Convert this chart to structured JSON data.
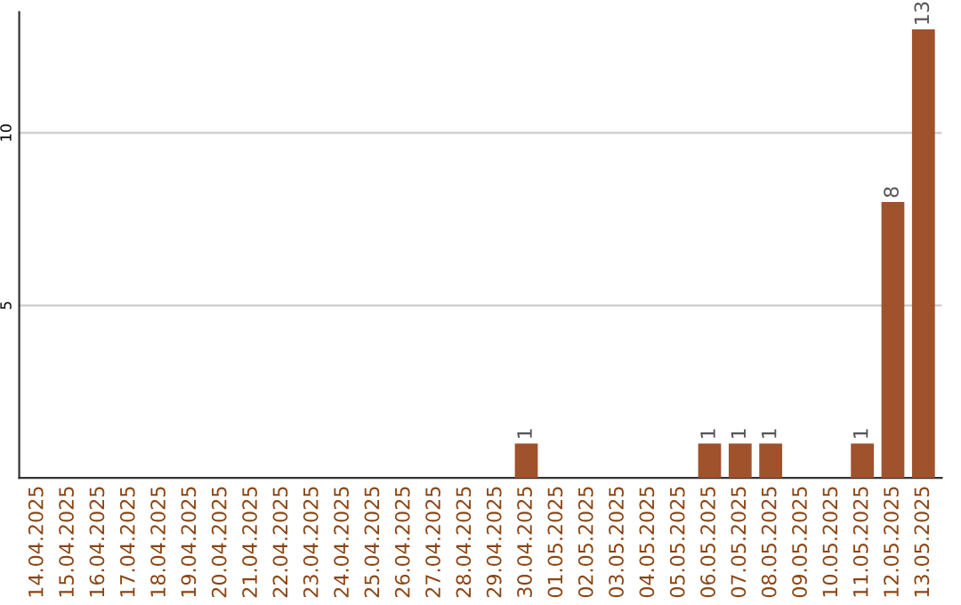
{
  "chart_data": {
    "type": "bar",
    "categories": [
      "14.04.2025",
      "15.04.2025",
      "16.04.2025",
      "17.04.2025",
      "18.04.2025",
      "19.04.2025",
      "20.04.2025",
      "21.04.2025",
      "22.04.2025",
      "23.04.2025",
      "24.04.2025",
      "25.04.2025",
      "26.04.2025",
      "27.04.2025",
      "28.04.2025",
      "29.04.2025",
      "30.04.2025",
      "01.05.2025",
      "02.05.2025",
      "03.05.2025",
      "04.05.2025",
      "05.05.2025",
      "06.05.2025",
      "07.05.2025",
      "08.05.2025",
      "09.05.2025",
      "10.05.2025",
      "11.05.2025",
      "12.05.2025",
      "13.05.2025"
    ],
    "values": [
      0,
      0,
      0,
      0,
      0,
      0,
      0,
      0,
      0,
      0,
      0,
      0,
      0,
      0,
      0,
      0,
      1,
      0,
      0,
      0,
      0,
      0,
      1,
      1,
      1,
      0,
      0,
      1,
      8,
      13
    ],
    "value_labels": [
      null,
      null,
      null,
      null,
      null,
      null,
      null,
      null,
      null,
      null,
      null,
      null,
      null,
      null,
      null,
      null,
      "1",
      null,
      null,
      null,
      null,
      null,
      "1",
      "1",
      "1",
      null,
      null,
      "1",
      "8",
      "13"
    ],
    "color": "#a0522d",
    "ylim": [
      0,
      13.5
    ],
    "yticks": [
      5,
      10
    ],
    "grid": "y"
  }
}
